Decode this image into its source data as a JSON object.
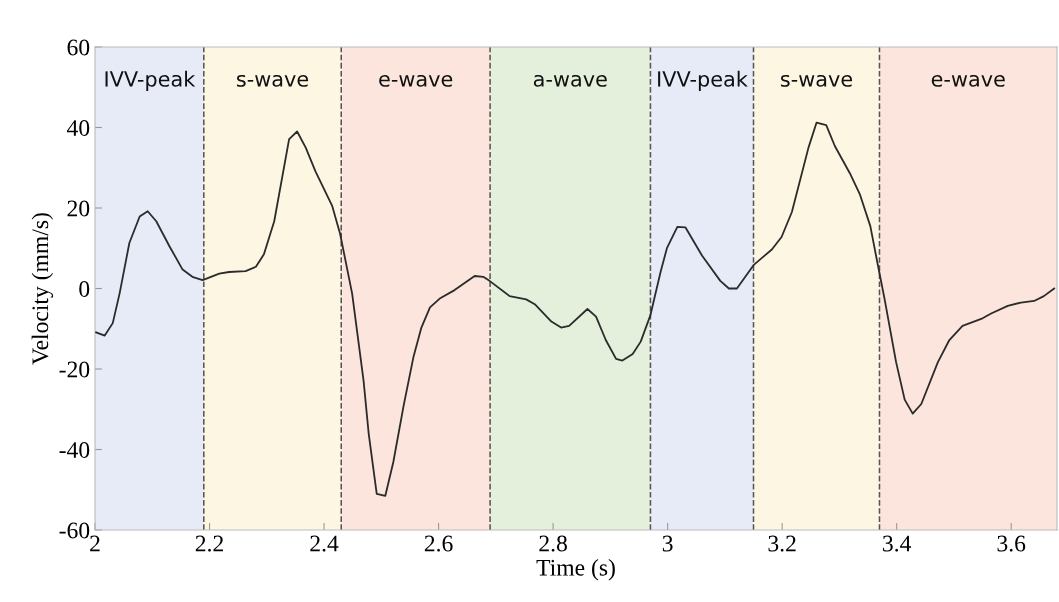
{
  "chart_data": {
    "type": "line",
    "xlabel": "Time (s)",
    "ylabel": "Velocity (mm/s)",
    "xlim": [
      2,
      3.68
    ],
    "xticks": [
      2,
      2.2,
      2.4,
      2.6,
      2.8,
      3,
      3.2,
      3.4,
      3.6
    ],
    "ylim": [
      -60,
      60
    ],
    "yticks": [
      -60,
      -40,
      -20,
      0,
      20,
      40,
      60
    ],
    "grid": false,
    "legend": false,
    "series": [
      {
        "color": "#2b2b2b",
        "x": [
          2.002,
          2.017,
          2.031,
          2.043,
          2.06,
          2.078,
          2.092,
          2.107,
          2.13,
          2.153,
          2.17,
          2.188,
          2.217,
          2.234,
          2.263,
          2.281,
          2.295,
          2.313,
          2.339,
          2.353,
          2.368,
          2.385,
          2.414,
          2.428,
          2.449,
          2.469,
          2.478,
          2.492,
          2.507,
          2.521,
          2.539,
          2.556,
          2.57,
          2.585,
          2.602,
          2.628,
          2.663,
          2.678,
          2.689,
          2.724,
          2.753,
          2.768,
          2.797,
          2.814,
          2.828,
          2.86,
          2.875,
          2.892,
          2.91,
          2.921,
          2.939,
          2.953,
          2.97,
          2.988,
          2.999,
          3.017,
          3.031,
          3.06,
          3.092,
          3.107,
          3.121,
          3.15,
          3.182,
          3.199,
          3.217,
          3.246,
          3.26,
          3.277,
          3.292,
          3.318,
          3.336,
          3.354,
          3.365,
          3.379,
          3.399,
          3.414,
          3.428,
          3.443,
          3.472,
          3.492,
          3.515,
          3.55,
          3.565,
          3.594,
          3.617,
          3.64,
          3.657,
          3.675
        ],
        "values": [
          -10.9,
          -11.7,
          -8.6,
          -1.2,
          11.3,
          17.9,
          19.2,
          16.7,
          10.5,
          4.7,
          2.9,
          2.1,
          3.7,
          4.1,
          4.3,
          5.4,
          8.5,
          16.7,
          37.1,
          39.0,
          35.0,
          29.1,
          20.6,
          13.6,
          -1.2,
          -22.9,
          -36.1,
          -51.0,
          -51.5,
          -43.1,
          -29.1,
          -17.1,
          -9.7,
          -4.7,
          -2.5,
          -0.4,
          3.1,
          2.9,
          1.9,
          -1.9,
          -2.7,
          -3.9,
          -8.2,
          -9.7,
          -9.3,
          -5.1,
          -7.0,
          -12.8,
          -17.5,
          -17.9,
          -16.3,
          -13.2,
          -6.6,
          4.3,
          10.1,
          15.3,
          15.2,
          8.2,
          1.9,
          0,
          0,
          5.8,
          9.7,
          12.8,
          19.0,
          35.0,
          41.2,
          40.6,
          35.4,
          28.7,
          23.3,
          15.5,
          7.4,
          -2.7,
          -18.3,
          -27.6,
          -31.1,
          -28.7,
          -18.3,
          -12.8,
          -9.3,
          -7.4,
          -6.2,
          -4.3,
          -3.5,
          -3.1,
          -1.9,
          0
        ]
      }
    ],
    "bands": [
      {
        "axis": "x",
        "from": 2,
        "to": 2.19,
        "label": "IVV-peak",
        "color": "#e6ebf7"
      },
      {
        "axis": "x",
        "from": 2.19,
        "to": 2.43,
        "label": "s-wave",
        "color": "#fdf6e3"
      },
      {
        "axis": "x",
        "from": 2.43,
        "to": 2.69,
        "label": "e-wave",
        "color": "#fbe5dc"
      },
      {
        "axis": "x",
        "from": 2.69,
        "to": 2.97,
        "label": "a-wave",
        "color": "#e5f0dc"
      },
      {
        "axis": "x",
        "from": 2.97,
        "to": 3.15,
        "label": "IVV-peak",
        "color": "#e6ebf7"
      },
      {
        "axis": "x",
        "from": 3.15,
        "to": 3.37,
        "label": "s-wave",
        "color": "#fdf6e3"
      },
      {
        "axis": "x",
        "from": 3.37,
        "to": 3.68,
        "label": "e-wave",
        "color": "#fbe5dc"
      }
    ],
    "ref_lines": [
      {
        "axis": "x",
        "value": 2.19,
        "color": "#555555",
        "line_style": "dashed"
      },
      {
        "axis": "x",
        "value": 2.43,
        "color": "#555555",
        "line_style": "dashed"
      },
      {
        "axis": "x",
        "value": 2.69,
        "color": "#555555",
        "line_style": "dashed"
      },
      {
        "axis": "x",
        "value": 2.97,
        "color": "#555555",
        "line_style": "dashed"
      },
      {
        "axis": "x",
        "value": 3.15,
        "color": "#555555",
        "line_style": "dashed"
      },
      {
        "axis": "x",
        "value": 3.37,
        "color": "#555555",
        "line_style": "dashed"
      }
    ]
  }
}
